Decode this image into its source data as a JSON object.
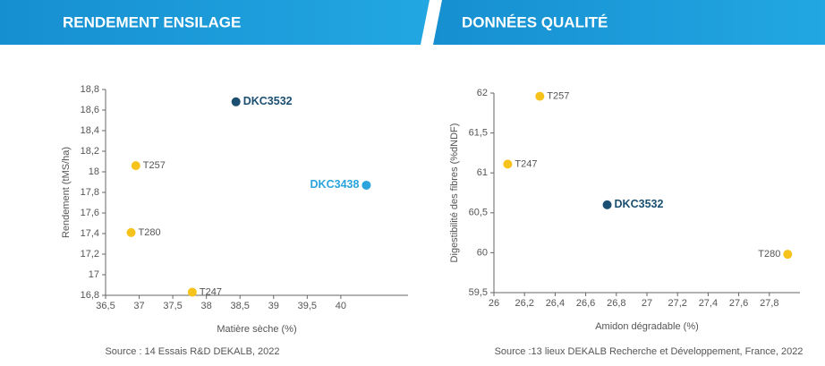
{
  "chart_data": [
    {
      "type": "scatter",
      "title": "RENDEMENT ENSILAGE",
      "x_label": "Matière sèche (%)",
      "y_label": "Rendement (tMS/ha)",
      "source": "Source : 14 Essais R&D DEKALB, 2022",
      "xlim": [
        36.5,
        41
      ],
      "ylim": [
        16.8,
        18.8
      ],
      "xticks": [
        {
          "value": 36.5,
          "label": "36,5"
        },
        37,
        {
          "value": 37.5,
          "label": "37,5"
        },
        38,
        {
          "value": 38.5,
          "label": "38,5"
        },
        39,
        {
          "value": 39.5,
          "label": "39,5"
        },
        40
      ],
      "yticks": [
        {
          "value": 16.8,
          "label": "16,8"
        },
        17,
        {
          "value": 17.2,
          "label": "17,2"
        },
        {
          "value": 17.4,
          "label": "17,4"
        },
        {
          "value": 17.6,
          "label": "17,6"
        },
        {
          "value": 17.8,
          "label": "17,8"
        },
        18,
        {
          "value": 18.2,
          "label": "18,2"
        },
        {
          "value": 18.4,
          "label": "18,4"
        },
        {
          "value": 18.6,
          "label": "18,6"
        },
        {
          "value": 18.8,
          "label": "18,8"
        }
      ],
      "series": [
        {
          "name": "DKC3532",
          "color": "#1b4f72",
          "label_color": "#1b4f72",
          "x": [
            38.44
          ],
          "values": [
            18.68
          ]
        },
        {
          "name": "DKC3438",
          "color": "#2aa4dd",
          "label_color": "#2aa4dd",
          "x": [
            40.38
          ],
          "values": [
            17.87
          ]
        },
        {
          "name": "T257",
          "color": "#f6c21c",
          "x": [
            36.95
          ],
          "values": [
            18.06
          ]
        },
        {
          "name": "T280",
          "color": "#f6c21c",
          "x": [
            36.88
          ],
          "values": [
            17.41
          ]
        },
        {
          "name": "T247",
          "color": "#f6c21c",
          "x": [
            37.79
          ],
          "values": [
            16.83
          ]
        }
      ]
    },
    {
      "type": "scatter",
      "title": "DONNÉES QUALITÉ",
      "x_label": "Amidon dégradable (%)",
      "y_label": "Digestibilité des fibres (%dNDF)",
      "source": "Source :13 lieux DEKALB Recherche et Développement, France, 2022",
      "xlim": [
        26,
        28
      ],
      "ylim": [
        59.5,
        62
      ],
      "xticks": [
        26,
        {
          "value": 26.2,
          "label": "26,2"
        },
        {
          "value": 26.4,
          "label": "26,4"
        },
        {
          "value": 26.6,
          "label": "26,6"
        },
        {
          "value": 26.8,
          "label": "26,8"
        },
        27,
        {
          "value": 27.2,
          "label": "27,2"
        },
        {
          "value": 27.4,
          "label": "27,4"
        },
        {
          "value": 27.6,
          "label": "27,6"
        },
        {
          "value": 27.8,
          "label": "27,8"
        }
      ],
      "yticks": [
        {
          "value": 59.5,
          "label": "59,5"
        },
        60,
        {
          "value": 60.5,
          "label": "60,5"
        },
        61,
        {
          "value": 61.5,
          "label": "61,5"
        },
        62
      ],
      "series": [
        {
          "name": "T257",
          "color": "#f6c21c",
          "x": [
            26.3
          ],
          "values": [
            61.96
          ]
        },
        {
          "name": "T247",
          "color": "#f6c21c",
          "x": [
            26.09
          ],
          "values": [
            61.11
          ]
        },
        {
          "name": "DKC3532",
          "color": "#1b4f72",
          "label_color": "#1b4f72",
          "x": [
            26.74
          ],
          "values": [
            60.6
          ]
        },
        {
          "name": "T280",
          "color": "#f6c21c",
          "x": [
            27.92
          ],
          "values": [
            59.98
          ]
        }
      ]
    }
  ]
}
